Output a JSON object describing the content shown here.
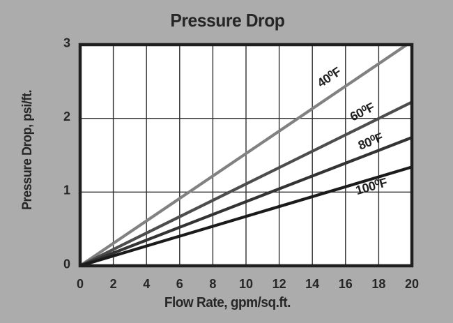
{
  "page": {
    "background": "#acacac"
  },
  "chart": {
    "title": "Pressure Drop",
    "xlabel": "Flow Rate, gpm/sq.ft.",
    "ylabel": "Pressure Drop, psi/ft."
  },
  "chart_data": {
    "type": "line",
    "title": "Pressure Drop",
    "xlabel": "Flow Rate, gpm/sq.ft.",
    "ylabel": "Pressure Drop, psi/ft.",
    "xlim": [
      0,
      20
    ],
    "ylim": [
      0,
      3
    ],
    "x_ticks": [
      0,
      2,
      4,
      6,
      8,
      10,
      12,
      14,
      16,
      18,
      20
    ],
    "y_ticks": [
      0,
      1,
      2,
      3
    ],
    "grid": true,
    "legend": "inline-labels-on-lines",
    "colors": {
      "background": "#acacac",
      "plot_background": "#ffffff",
      "grid": "#2e2e2e",
      "border": "#1f1f1f",
      "text": "#262626"
    },
    "series": [
      {
        "name": "40F",
        "label": "40⁰F",
        "color": "#818181",
        "slope_psi_per_gpm": 0.152,
        "points": [
          [
            0,
            0
          ],
          [
            19.7,
            3.0
          ]
        ],
        "label_pos": {
          "x": 15.0,
          "y": 2.56
        },
        "label_angle_deg": -34
      },
      {
        "name": "60F",
        "label": "60⁰F",
        "color": "#4d4d4d",
        "slope_psi_per_gpm": 0.111,
        "points": [
          [
            0,
            0
          ],
          [
            20,
            2.22
          ]
        ],
        "label_pos": {
          "x": 17.0,
          "y": 2.09
        },
        "label_angle_deg": -27
      },
      {
        "name": "80F",
        "label": "80⁰F",
        "color": "#333333",
        "slope_psi_per_gpm": 0.087,
        "points": [
          [
            0,
            0
          ],
          [
            20,
            1.74
          ]
        ],
        "label_pos": {
          "x": 17.5,
          "y": 1.69
        },
        "label_angle_deg": -22
      },
      {
        "name": "100F",
        "label": "100⁰F",
        "color": "#1b1b1b",
        "slope_psi_per_gpm": 0.067,
        "points": [
          [
            0,
            0
          ],
          [
            20,
            1.34
          ]
        ],
        "label_pos": {
          "x": 17.55,
          "y": 1.08
        },
        "label_angle_deg": -16
      }
    ]
  }
}
